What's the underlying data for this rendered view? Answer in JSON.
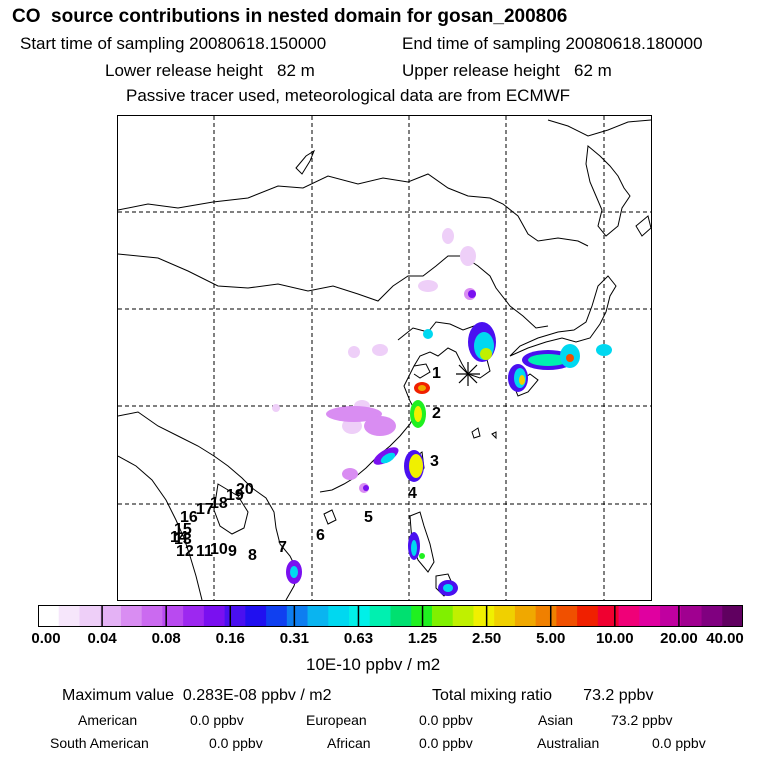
{
  "header": {
    "title": "CO  source contributions in nested domain for gosan_200806",
    "start_label": "Start time of sampling 20080618.150000",
    "end_label": "End time of sampling 20080618.180000",
    "lower_label": "Lower release height   82 m",
    "upper_label": "Upper release height   62 m",
    "tracer_line": "Passive tracer used, meteorological data are from ECMWF"
  },
  "map": {
    "region_labels": [
      "1",
      "2",
      "3",
      "4",
      "5",
      "6",
      "7",
      "8",
      "9",
      "10",
      "11",
      "12",
      "13",
      "14",
      "15",
      "16",
      "17",
      "18",
      "19",
      "20"
    ],
    "receptor_marker": "star-marker",
    "colors": {
      "land_outline": "#000000",
      "grid": "#000000"
    }
  },
  "colorbar": {
    "colors": [
      "#ffffff",
      "#f6e6fb",
      "#eecff8",
      "#e4b2f5",
      "#d98df2",
      "#cb6af0",
      "#b94af0",
      "#9d28f0",
      "#7a10f0",
      "#4a10f0",
      "#2010f0",
      "#1040f0",
      "#0e7ef0",
      "#0ab4f0",
      "#00d8f0",
      "#00f0e8",
      "#00f0b0",
      "#00e070",
      "#20f020",
      "#80f000",
      "#c0f000",
      "#f0f000",
      "#f0d000",
      "#f0a800",
      "#f08000",
      "#f05000",
      "#f02000",
      "#f00030",
      "#f00078",
      "#e000a0",
      "#c000a0",
      "#a00090",
      "#800080",
      "#600060"
    ],
    "tick_labels": [
      "0.00",
      "0.04",
      "0.08",
      "0.16",
      "0.31",
      "0.63",
      "1.25",
      "2.50",
      "5.00",
      "10.00",
      "20.00",
      "40.00"
    ],
    "units": "10E-10 ppbv / m2"
  },
  "footer": {
    "max_value": "Maximum value  0.283E-08 ppbv / m2",
    "total": "Total mixing ratio       73.2 ppbv",
    "american_label": "American",
    "american_value": "0.0 ppbv",
    "european_label": "European",
    "european_value": "0.0 ppbv",
    "asian_label": "Asian",
    "asian_value": "73.2 ppbv",
    "south_american_label": "South American",
    "south_american_value": "0.0 ppbv",
    "african_label": "African",
    "african_value": "0.0 ppbv",
    "australian_label": "Australian",
    "australian_value": "0.0 ppbv"
  }
}
